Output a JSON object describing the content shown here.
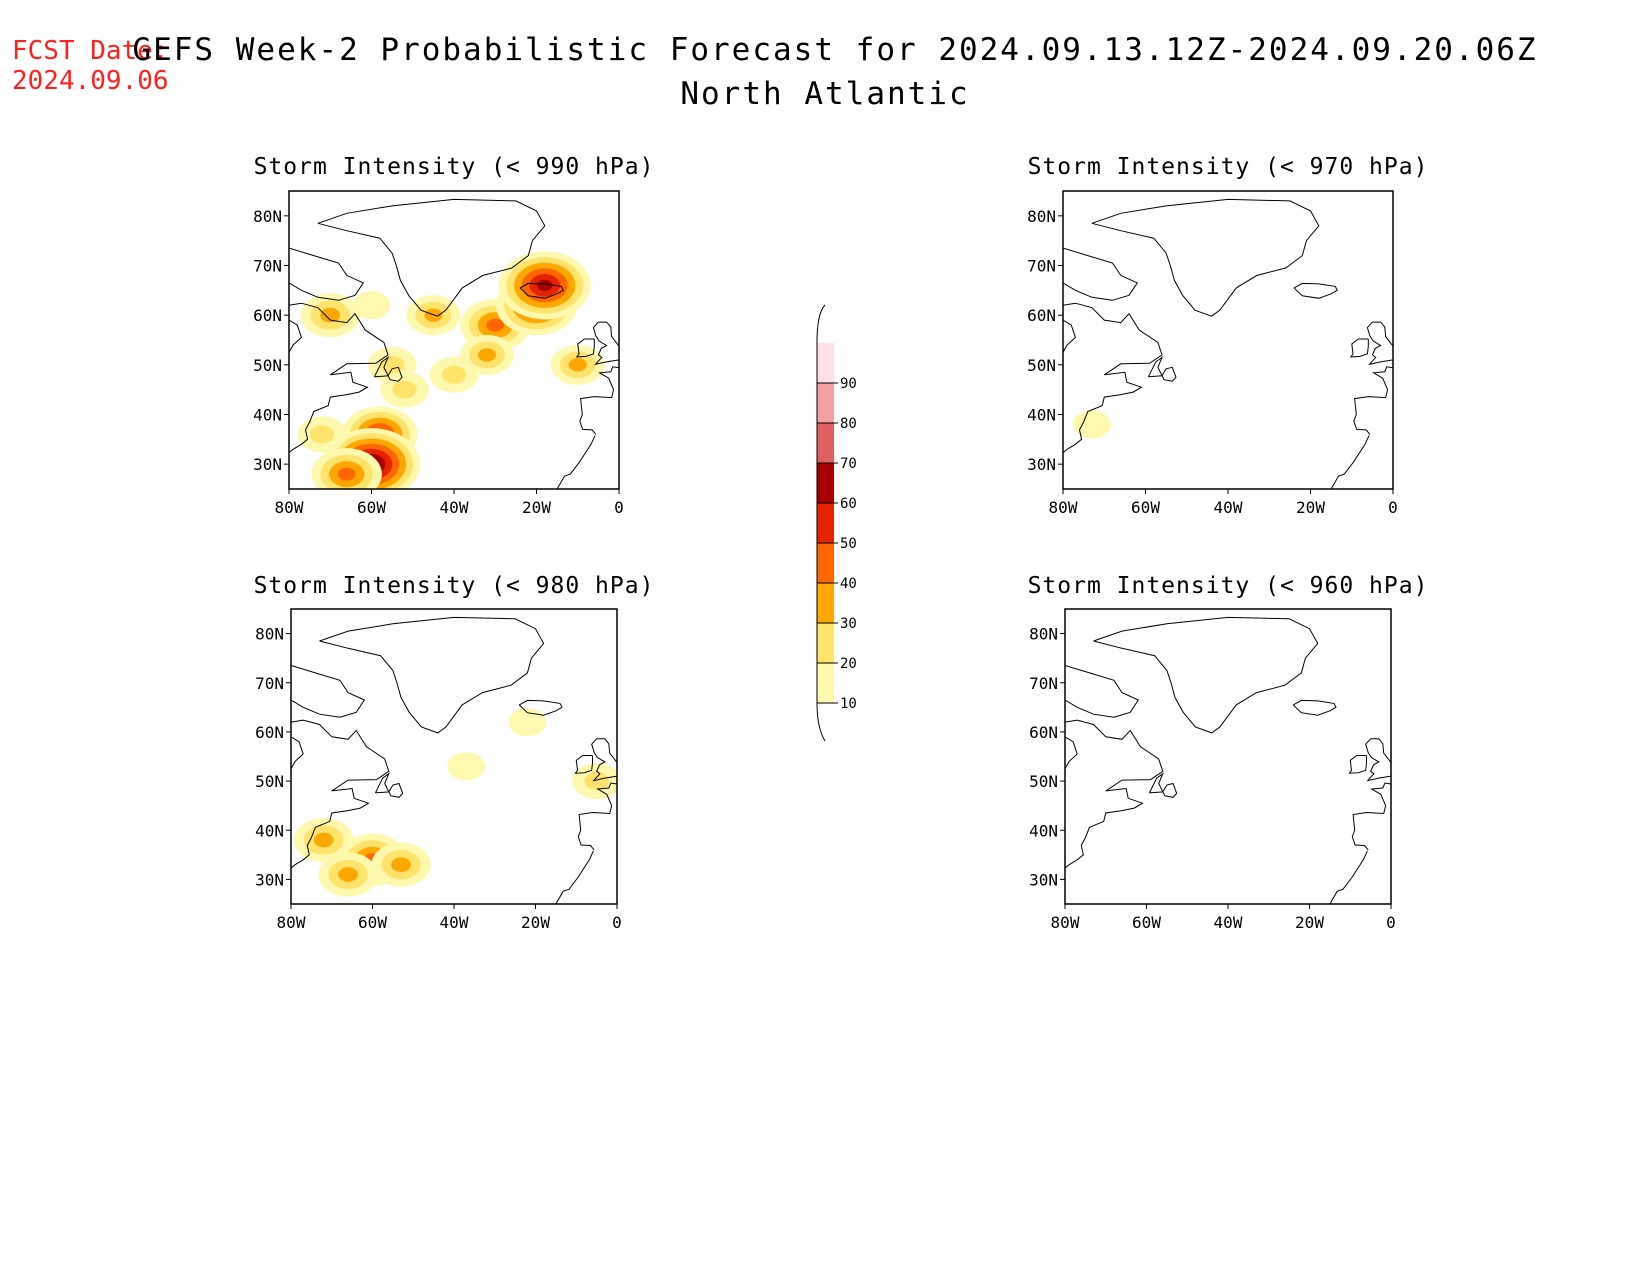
{
  "fcst_date": {
    "label": "FCST Date:",
    "value": "2024.09.06"
  },
  "title": "GEFS Week-2 Probabilistic Forecast for 2024.09.13.12Z-2024.09.20.06Z",
  "subtitle": "North Atlantic",
  "axes": {
    "lon_ticks": [
      "80W",
      "60W",
      "40W",
      "20W",
      "0"
    ],
    "lat_ticks": [
      "80N",
      "70N",
      "60N",
      "50N",
      "40N",
      "30N"
    ],
    "lon_range": [
      -80,
      0
    ],
    "lat_range": [
      25,
      85
    ]
  },
  "colorbar": {
    "levels": [
      10,
      20,
      30,
      40,
      50,
      60,
      70,
      80,
      90
    ],
    "level_labels": [
      "10",
      "20",
      "30",
      "40",
      "50",
      "60",
      "70",
      "80",
      "90"
    ],
    "colors": [
      "#fff9b0",
      "#ffe36b",
      "#ffa600",
      "#ff6600",
      "#e62200",
      "#a80000",
      "#e06060",
      "#f4a0a0",
      "#ffe0e6"
    ]
  },
  "panels": [
    {
      "id": "p990",
      "title": "Storm Intensity (< 990 hPa)",
      "activity": "high"
    },
    {
      "id": "p970",
      "title": "Storm Intensity (< 970 hPa)",
      "activity": "minimal"
    },
    {
      "id": "p980",
      "title": "Storm Intensity (< 980 hPa)",
      "activity": "low"
    },
    {
      "id": "p960",
      "title": "Storm Intensity (< 960 hPa)",
      "activity": "none"
    }
  ],
  "chart_data": {
    "type": "heatmap",
    "units": "probability (%)",
    "fields": [
      {
        "panel": "Storm Intensity (< 990 hPa)",
        "blobs": [
          {
            "lon": -70,
            "lat": 60,
            "p": 35
          },
          {
            "lon": -60,
            "lat": 62,
            "p": 15
          },
          {
            "lon": -45,
            "lat": 60,
            "p": 30
          },
          {
            "lon": -30,
            "lat": 58,
            "p": 45
          },
          {
            "lon": -20,
            "lat": 62,
            "p": 55
          },
          {
            "lon": -18,
            "lat": 66,
            "p": 65
          },
          {
            "lon": -32,
            "lat": 52,
            "p": 30
          },
          {
            "lon": -40,
            "lat": 48,
            "p": 25
          },
          {
            "lon": -55,
            "lat": 50,
            "p": 25
          },
          {
            "lon": -52,
            "lat": 45,
            "p": 25
          },
          {
            "lon": -58,
            "lat": 36,
            "p": 50
          },
          {
            "lon": -60,
            "lat": 30,
            "p": 70
          },
          {
            "lon": -66,
            "lat": 28,
            "p": 45
          },
          {
            "lon": -72,
            "lat": 36,
            "p": 25
          },
          {
            "lon": -10,
            "lat": 50,
            "p": 30
          }
        ]
      },
      {
        "panel": "Storm Intensity (< 970 hPa)",
        "blobs": [
          {
            "lon": -73,
            "lat": 38,
            "p": 15
          }
        ]
      },
      {
        "panel": "Storm Intensity (< 980 hPa)",
        "blobs": [
          {
            "lon": -22,
            "lat": 62,
            "p": 15
          },
          {
            "lon": -37,
            "lat": 53,
            "p": 15
          },
          {
            "lon": -5,
            "lat": 50,
            "p": 25
          },
          {
            "lon": -72,
            "lat": 38,
            "p": 35
          },
          {
            "lon": -60,
            "lat": 34,
            "p": 45
          },
          {
            "lon": -66,
            "lat": 31,
            "p": 35
          },
          {
            "lon": -53,
            "lat": 33,
            "p": 35
          }
        ]
      },
      {
        "panel": "Storm Intensity (< 960 hPa)",
        "blobs": []
      }
    ]
  }
}
